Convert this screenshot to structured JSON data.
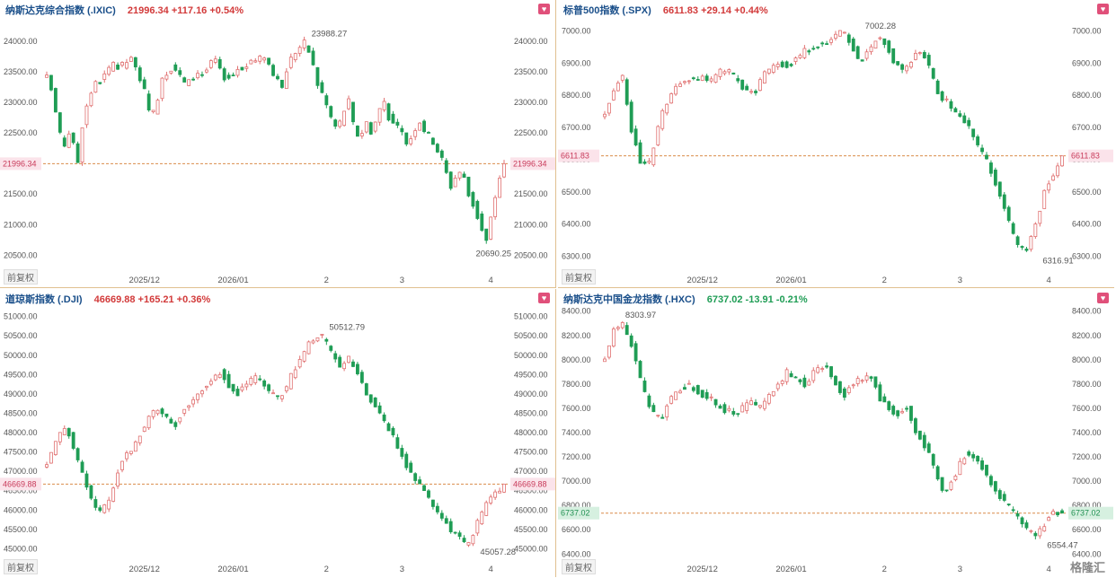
{
  "watermark": "格隆汇",
  "panels": [
    {
      "name": "纳斯达克综合指数 (.IXIC)",
      "quote": "21996.34  +117.16  +0.54%",
      "direction": "up",
      "heart_icon": "heart-icon",
      "adjust_label": "前复权",
      "chart_data": {
        "type": "candlestick",
        "ylim": [
          20300,
          24350
        ],
        "yticks": [
          "24000.00",
          "23500.00",
          "23000.00",
          "22500.00",
          "22000.00",
          "21500.00",
          "21000.00",
          "20500.00"
        ],
        "ytick_values": [
          24000,
          23500,
          23000,
          22500,
          22000,
          21500,
          21000,
          20500
        ],
        "xticks": [
          {
            "label": "2025/12",
            "i": 22
          },
          {
            "label": "2026/01",
            "i": 42
          },
          {
            "label": "2",
            "i": 63
          },
          {
            "label": "3",
            "i": 80
          },
          {
            "label": "4",
            "i": 100
          }
        ],
        "last": 21996.34,
        "last_label": "21996.34",
        "annotations": [
          {
            "label": "23988.27",
            "i": 58,
            "value": 23988.27
          },
          {
            "label": "20690.25",
            "i": 95,
            "value": 20690.25
          }
        ],
        "path": [
          23400,
          23150,
          22500,
          22300,
          22600,
          21900,
          22700,
          23100,
          23300,
          23350,
          23500,
          23600,
          23550,
          23650,
          23700,
          23500,
          23300,
          22800,
          22850,
          23400,
          23500,
          23600,
          23450,
          23300,
          23350,
          23500,
          23450,
          23600,
          23700,
          23450,
          23400,
          23450,
          23600,
          23550,
          23700,
          23650,
          23800,
          23600,
          23400,
          23200,
          23600,
          23800,
          23900,
          23988,
          23700,
          23300,
          23100,
          22800,
          22600,
          22700,
          23100,
          22600,
          22400,
          22700,
          22500,
          22800,
          23050,
          22700,
          22600,
          22500,
          22300,
          22550,
          22700,
          22500,
          22400,
          22200,
          22000,
          21600,
          21800,
          21900,
          21500,
          21300,
          21000,
          20700,
          21200,
          21700,
          21996
        ],
        "candles": [],
        "colors": {
          "up": "#e07070",
          "down": "#1f9d55",
          "last_line": "#d98c4a"
        }
      }
    },
    {
      "name": "标普500指数 (.SPX)",
      "quote": "6611.83  +29.14  +0.44%",
      "direction": "up",
      "heart_icon": "heart-icon",
      "adjust_label": "前复权",
      "chart_data": {
        "type": "candlestick",
        "ylim": [
          6265,
          7035
        ],
        "yticks": [
          "7000.00",
          "6900.00",
          "6800.00",
          "6700.00",
          "6600.00",
          "6500.00",
          "6400.00",
          "6300.00"
        ],
        "ytick_values": [
          7000,
          6900,
          6800,
          6700,
          6600,
          6500,
          6400,
          6300
        ],
        "xticks": [
          {
            "label": "2025/12",
            "i": 22
          },
          {
            "label": "2026/01",
            "i": 42
          },
          {
            "label": "2",
            "i": 63
          },
          {
            "label": "3",
            "i": 80
          },
          {
            "label": "4",
            "i": 100
          }
        ],
        "last": 6611.83,
        "last_label": "6611.83",
        "annotations": [
          {
            "label": "7002.28",
            "i": 57,
            "value": 7002.28
          },
          {
            "label": "6316.91",
            "i": 97,
            "value": 6316.91
          }
        ],
        "path": [
          6750,
          6820,
          6860,
          6700,
          6600,
          6580,
          6700,
          6780,
          6820,
          6840,
          6850,
          6860,
          6840,
          6870,
          6880,
          6850,
          6820,
          6800,
          6860,
          6890,
          6900,
          6890,
          6920,
          6940,
          6960,
          6950,
          6980,
          7000,
          6960,
          6900,
          6940,
          6980,
          6960,
          6900,
          6880,
          6920,
          6940,
          6880,
          6800,
          6780,
          6740,
          6720,
          6660,
          6620,
          6560,
          6480,
          6400,
          6330,
          6316,
          6400,
          6500,
          6560,
          6611
        ],
        "candles": [],
        "colors": {
          "up": "#e07070",
          "down": "#1f9d55",
          "last_line": "#d98c4a"
        }
      }
    },
    {
      "name": "道琼斯指数 (.DJI)",
      "quote": "46669.88  +165.21  +0.36%",
      "direction": "up",
      "heart_icon": "heart-icon",
      "adjust_label": "前复权",
      "chart_data": {
        "type": "candlestick",
        "ylim": [
          44800,
          51200
        ],
        "yticks": [
          "51000.00",
          "50500.00",
          "50000.00",
          "49500.00",
          "49000.00",
          "48500.00",
          "48000.00",
          "47500.00",
          "47000.00",
          "46500.00",
          "46000.00",
          "45500.00",
          "45000.00"
        ],
        "ytick_values": [
          51000,
          50500,
          50000,
          49500,
          49000,
          48500,
          48000,
          47500,
          47000,
          46500,
          46000,
          45500,
          45000
        ],
        "xticks": [
          {
            "label": "2025/12",
            "i": 22
          },
          {
            "label": "2026/01",
            "i": 42
          },
          {
            "label": "2",
            "i": 63
          },
          {
            "label": "3",
            "i": 80
          },
          {
            "label": "4",
            "i": 100
          }
        ],
        "last": 46669.88,
        "last_label": "46669.88",
        "annotations": [
          {
            "label": "50512.79",
            "i": 62,
            "value": 50512.79
          },
          {
            "label": "45057.28",
            "i": 96,
            "value": 45057.28
          }
        ],
        "path": [
          47200,
          47700,
          48200,
          47600,
          46800,
          46200,
          45900,
          46400,
          47200,
          47500,
          47900,
          48300,
          48600,
          48400,
          48200,
          48600,
          48900,
          49100,
          49400,
          49600,
          49200,
          49000,
          49300,
          49500,
          49100,
          48900,
          49100,
          49600,
          50000,
          50400,
          50512,
          50100,
          49700,
          49900,
          49600,
          49000,
          48600,
          48200,
          47800,
          47300,
          46900,
          46500,
          46200,
          45900,
          45500,
          45300,
          45057,
          45600,
          46100,
          46400,
          46669
        ],
        "candles": [],
        "colors": {
          "up": "#e07070",
          "down": "#1f9d55",
          "last_line": "#d98c4a"
        }
      }
    },
    {
      "name": "纳斯达克中国金龙指数 (.HXC)",
      "quote": "6737.02  -13.91  -0.21%",
      "direction": "down",
      "heart_icon": "heart-icon",
      "adjust_label": "前复权",
      "chart_data": {
        "type": "candlestick",
        "ylim": [
          6380,
          8420
        ],
        "yticks": [
          "8400.00",
          "8200.00",
          "8000.00",
          "7800.00",
          "7600.00",
          "7400.00",
          "7200.00",
          "7000.00",
          "6800.00",
          "6600.00",
          "6400.00"
        ],
        "ytick_values": [
          8400,
          8200,
          8000,
          7800,
          7600,
          7400,
          7200,
          7000,
          6800,
          6600,
          6400
        ],
        "xticks": [
          {
            "label": "2025/12",
            "i": 22
          },
          {
            "label": "2026/01",
            "i": 42
          },
          {
            "label": "2",
            "i": 63
          },
          {
            "label": "3",
            "i": 80
          },
          {
            "label": "4",
            "i": 100
          }
        ],
        "last": 6737.02,
        "last_label": "6737.02",
        "annotations": [
          {
            "label": "8303.97",
            "i": 3,
            "value": 8303.97
          },
          {
            "label": "6554.47",
            "i": 98,
            "value": 6554.47
          }
        ],
        "path": [
          8000,
          8250,
          8303,
          8100,
          7800,
          7600,
          7500,
          7650,
          7750,
          7800,
          7750,
          7700,
          7650,
          7600,
          7550,
          7600,
          7650,
          7600,
          7700,
          7800,
          7900,
          7850,
          7800,
          7900,
          7950,
          7850,
          7700,
          7800,
          7850,
          7900,
          7700,
          7600,
          7550,
          7600,
          7400,
          7300,
          7100,
          6900,
          7000,
          7200,
          7250,
          7150,
          7000,
          6900,
          6800,
          6700,
          6600,
          6554,
          6650,
          6750,
          6737
        ],
        "candles": [],
        "colors": {
          "up": "#e07070",
          "down": "#1f9d55",
          "last_line": "#d98c4a"
        }
      }
    }
  ]
}
